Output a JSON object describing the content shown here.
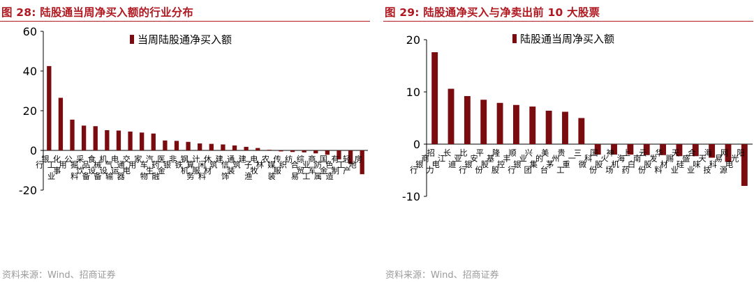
{
  "source_text": "资料来源：Wind、招商证券",
  "colors": {
    "bar": "#7a0c10",
    "title": "#b01820",
    "axis": "#000000",
    "source": "#9a9a9a"
  },
  "chart_data": [
    {
      "type": "bar",
      "title": "图 28:  陆股通当周净买入额的行业分布",
      "xlabel": "",
      "ylabel": "",
      "ylim": [
        -20,
        60
      ],
      "yticks": [
        -20,
        0,
        20,
        40,
        60
      ],
      "legend": "top-center",
      "grid": false,
      "categories": [
        "银行",
        "化工",
        "公用事业",
        "采掘",
        "食品饮料",
        "机械设备",
        "电气设备",
        "交通运输",
        "家用电器",
        "汽车",
        "医药生物",
        "非银金融",
        "钢铁",
        "计算机",
        "休闲服务",
        "建筑材料",
        "通信",
        "建筑装饰",
        "电子",
        "农林牧渔",
        "传媒",
        "纺织服装",
        "综合",
        "商业贸易",
        "国防军工",
        "有色金属",
        "轻工制造",
        "房地产"
      ],
      "series": [
        {
          "name": "当周陆股通净买入额",
          "values": [
            42.5,
            26.5,
            15.5,
            12.5,
            12.2,
            10.2,
            10.0,
            9.5,
            9.0,
            8.5,
            5.0,
            4.8,
            4.3,
            3.5,
            3.3,
            3.0,
            2.5,
            1.8,
            1.2,
            0.3,
            -0.5,
            -0.8,
            -1.0,
            -1.5,
            -2.2,
            -4.5,
            -6.8,
            -12.0
          ]
        }
      ]
    },
    {
      "type": "bar",
      "title": "图 29:  陆股通净买入与净卖出前 10 大股票",
      "xlabel": "",
      "ylabel": "",
      "ylim": [
        -10,
        20
      ],
      "yticks": [
        -10,
        0,
        10,
        20
      ],
      "legend": "top-center",
      "grid": false,
      "categories": [
        "招商银行",
        "长江电力",
        "比亚迪",
        "平安银行",
        "隆基股份",
        "顺丰控股",
        "兴业银行",
        "美的集团",
        "贵州茅台",
        "三一重工",
        "国科微",
        "神火股份",
        "上海机场",
        "云南白药",
        "华发股份",
        "天赐材料",
        "合盛硅业",
        "海天味业",
        "网易科技",
        "阳光电源"
      ],
      "series": [
        {
          "name": "陆股通当周净买入额",
          "values": [
            17.6,
            10.6,
            9.2,
            8.5,
            7.9,
            7.5,
            7.2,
            6.4,
            6.2,
            5.0,
            -2.0,
            -2.0,
            -2.0,
            -2.1,
            -2.1,
            -2.3,
            -2.3,
            -2.6,
            -3.4,
            -8.0
          ]
        }
      ]
    }
  ]
}
